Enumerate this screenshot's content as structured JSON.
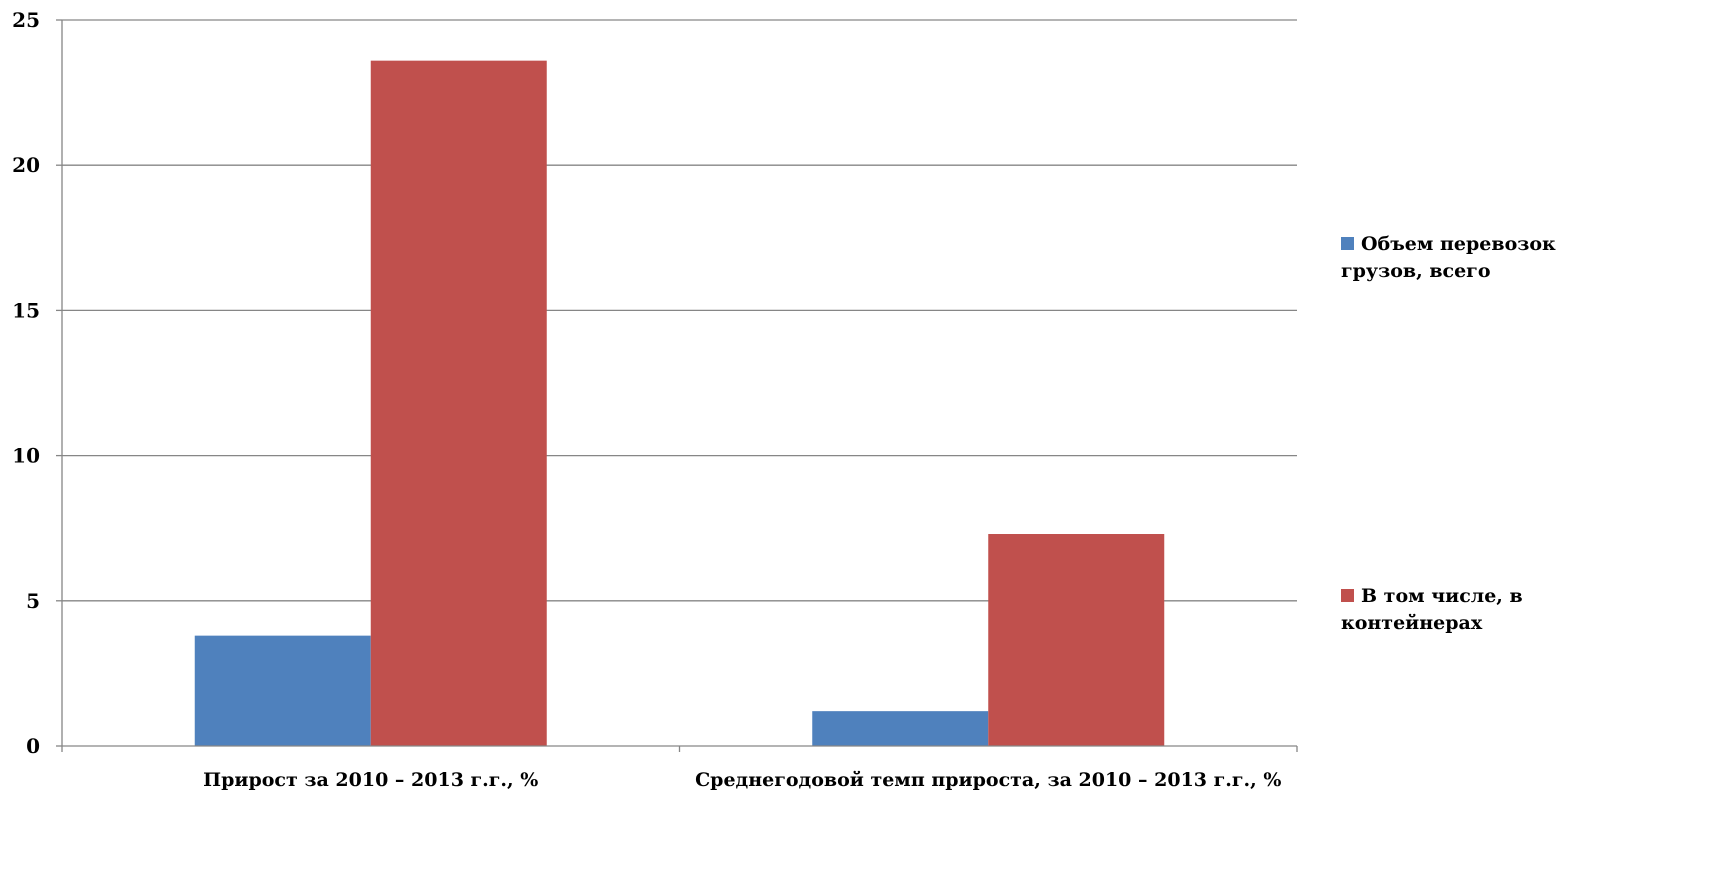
{
  "chart_data": {
    "type": "bar",
    "categories": [
      "Прирост за 2010 – 2013 г.г., %",
      "Среднегодовой темп прироста, за 2010 – 2013 г.г., %"
    ],
    "series": [
      {
        "name": "Объем перевозок грузов, всего",
        "name_lines": [
          "Объем перевозок",
          "грузов, всего"
        ],
        "color": "#4f81bd",
        "values": [
          3.8,
          1.2
        ]
      },
      {
        "name": "В том числе, в контейнерах",
        "name_lines": [
          "В том числе, в",
          "контейнерах"
        ],
        "color": "#c0504d",
        "values": [
          23.6,
          7.3
        ]
      }
    ],
    "ylim": [
      0,
      25
    ],
    "yticks": [
      0,
      5,
      10,
      15,
      20,
      25
    ],
    "grid": true,
    "legend_position": "right",
    "title": "",
    "xlabel": "",
    "ylabel": ""
  }
}
